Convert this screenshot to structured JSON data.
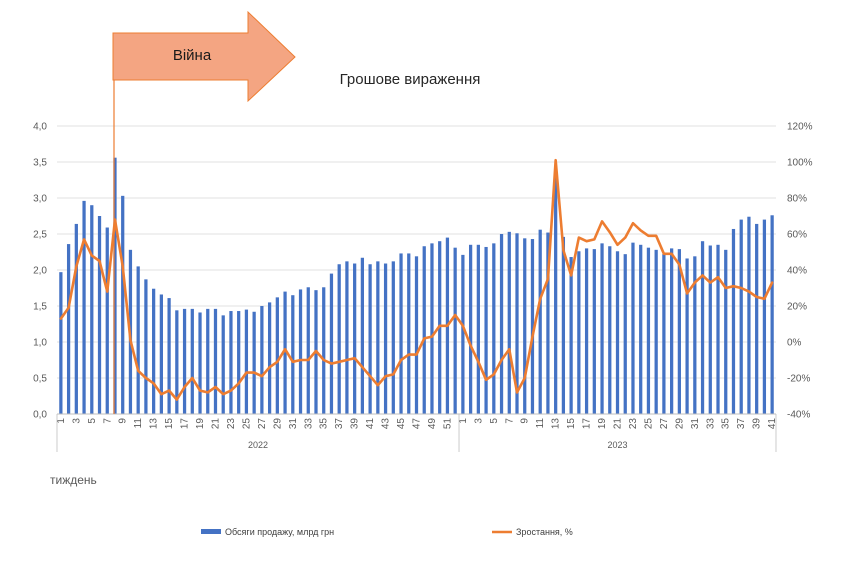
{
  "chart_data": {
    "type": "bar",
    "title": "Грошове вираження",
    "xlabel": "тиждень",
    "annotation": {
      "label": "Війна",
      "at_index": 7
    },
    "groups": [
      {
        "label": "2022",
        "count": 52
      },
      {
        "label": "2023",
        "count": 41
      }
    ],
    "x_tick_step": 2,
    "y_left": {
      "min": 0,
      "max": 4,
      "step": 0.5,
      "tick_labels": [
        "0,0",
        "0,5",
        "1,0",
        "1,5",
        "2,0",
        "2,5",
        "3,0",
        "3,5",
        "4,0"
      ]
    },
    "y_right": {
      "min": -40,
      "max": 120,
      "step": 20,
      "tick_labels": [
        "-40%",
        "-20%",
        "0%",
        "20%",
        "40%",
        "60%",
        "80%",
        "100%",
        "120%"
      ]
    },
    "grid": true,
    "legend_position": "bottom",
    "series": [
      {
        "name": "Обсяги продажу, млрд грн",
        "kind": "bar",
        "axis": "left",
        "color": "#4472C4",
        "values": [
          1.97,
          2.36,
          2.64,
          2.96,
          2.9,
          2.75,
          2.59,
          3.56,
          3.03,
          2.28,
          2.05,
          1.87,
          1.74,
          1.66,
          1.61,
          1.44,
          1.46,
          1.46,
          1.41,
          1.46,
          1.46,
          1.37,
          1.43,
          1.43,
          1.45,
          1.42,
          1.5,
          1.55,
          1.62,
          1.7,
          1.65,
          1.73,
          1.76,
          1.72,
          1.76,
          1.95,
          2.08,
          2.12,
          2.09,
          2.17,
          2.08,
          2.12,
          2.09,
          2.12,
          2.23,
          2.23,
          2.19,
          2.33,
          2.37,
          2.4,
          2.45,
          2.31,
          2.21,
          2.35,
          2.35,
          2.32,
          2.37,
          2.5,
          2.53,
          2.51,
          2.44,
          2.43,
          2.56,
          2.52,
          3.35,
          2.46,
          2.18,
          2.26,
          2.3,
          2.29,
          2.37,
          2.33,
          2.26,
          2.22,
          2.38,
          2.35,
          2.31,
          2.28,
          2.22,
          2.3,
          2.29,
          2.16,
          2.19,
          2.4,
          2.34,
          2.35,
          2.28,
          2.57,
          2.7,
          2.74,
          2.64,
          2.7,
          2.76
        ]
      },
      {
        "name": "Зростання, %",
        "kind": "line",
        "axis": "right",
        "color": "#ED7D31",
        "values": [
          13,
          19,
          42,
          57,
          48,
          45,
          28,
          68,
          42,
          1,
          -16,
          -20,
          -23,
          -29,
          -27,
          -32,
          -25,
          -20,
          -27,
          -28,
          -25,
          -29,
          -27,
          -23,
          -17,
          -17,
          -19,
          -14,
          -11,
          -4,
          -11,
          -10,
          -10,
          -5,
          -10,
          -12,
          -11,
          -10,
          -9,
          -14,
          -19,
          -24,
          -19,
          -18,
          -10,
          -7,
          -7,
          2,
          3,
          9,
          9,
          15,
          9,
          -2,
          -11,
          -21,
          -18,
          -10,
          -4,
          -28,
          -20,
          3,
          24,
          35,
          101,
          51,
          37,
          58,
          56,
          57,
          67,
          61,
          54,
          58,
          66,
          62,
          59,
          59,
          49,
          49,
          43,
          27,
          33,
          37,
          33,
          36,
          30,
          31,
          30,
          28,
          25,
          24,
          33
        ]
      }
    ]
  }
}
